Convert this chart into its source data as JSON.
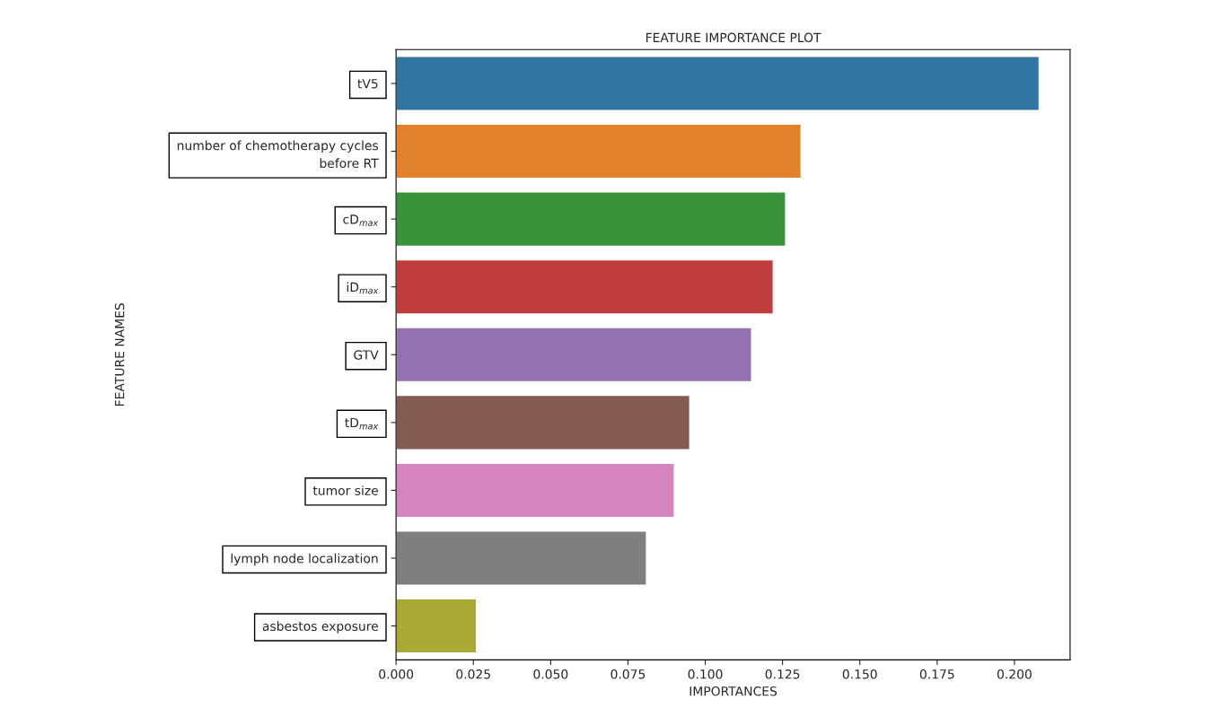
{
  "chart_data": {
    "type": "bar",
    "orientation": "horizontal",
    "title": "FEATURE IMPORTANCE PLOT",
    "xlabel": "IMPORTANCES",
    "ylabel": "FEATURE NAMES",
    "categories": [
      "tV5",
      "number of chemotherapy cycles\nbefore RT",
      "cD$_{max}$",
      "iD$_{max}$",
      "GTV",
      "tD$_{max}$",
      "tumor size",
      "lymph node localization",
      "asbestos exposure"
    ],
    "values": [
      0.208,
      0.131,
      0.126,
      0.122,
      0.115,
      0.095,
      0.09,
      0.081,
      0.026
    ],
    "colors": [
      "#3274a1",
      "#e1812c",
      "#3a923a",
      "#c03d3e",
      "#9372b2",
      "#845b53",
      "#d684bd",
      "#7f7f7f",
      "#a9aa35"
    ],
    "xlim": [
      0,
      0.218
    ],
    "xticks": [
      {
        "value": 0,
        "label": "0.000"
      },
      {
        "value": 0.025,
        "label": "0.025"
      },
      {
        "value": 0.05,
        "label": "0.050"
      },
      {
        "value": 0.075,
        "label": "0.075"
      },
      {
        "value": 0.1,
        "label": "0.100"
      },
      {
        "value": 0.125,
        "label": "0.125"
      },
      {
        "value": 0.15,
        "label": "0.150"
      },
      {
        "value": 0.175,
        "label": "0.175"
      },
      {
        "value": 0.2,
        "label": "0.200"
      }
    ],
    "grid": false
  }
}
